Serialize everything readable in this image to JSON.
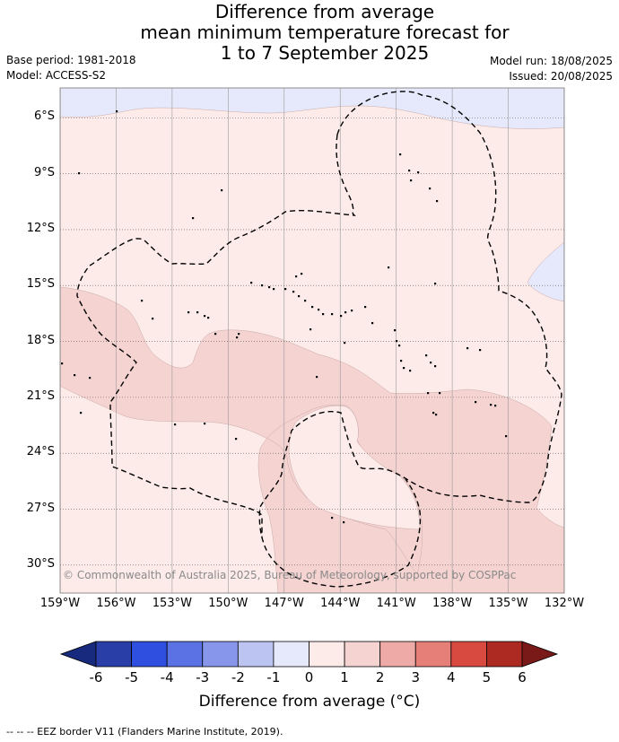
{
  "title": {
    "line1": "Difference from average",
    "line2": "mean minimum temperature forecast for",
    "line3": "1 to 7 September 2025"
  },
  "meta": {
    "base_period": "Base period: 1981-2018",
    "model": "Model: ACCESS-S2",
    "model_run": "Model run: 18/08/2025",
    "issued": "Issued: 20/08/2025"
  },
  "map": {
    "lon_labels": [
      "159°W",
      "156°W",
      "153°W",
      "150°W",
      "147°W",
      "144°W",
      "141°W",
      "138°W",
      "135°W",
      "132°W"
    ],
    "lat_labels": [
      "6°S",
      "9°S",
      "12°S",
      "15°S",
      "18°S",
      "21°S",
      "24°S",
      "27°S",
      "30°S"
    ],
    "lon_range": [
      -159,
      -132
    ],
    "lat_range": [
      -31.5,
      -4.4
    ],
    "copyright": "© Commonwealth of Australia 2025, Bureau of Meteorology, supported by COSPPac"
  },
  "colorbar": {
    "ticks": [
      "-6",
      "-5",
      "-4",
      "-3",
      "-2",
      "-1",
      "0",
      "1",
      "2",
      "3",
      "4",
      "5",
      "6"
    ],
    "colors": [
      "#2a3ea8",
      "#2f4fe0",
      "#5a72e4",
      "#8796ea",
      "#bcc4f2",
      "#e6e9fb",
      "#fcebe9",
      "#f4d3d1",
      "#eeaaa6",
      "#e57f77",
      "#d84a40",
      "#ac2a22"
    ],
    "under_color": "#172a7e",
    "over_color": "#7a1a18",
    "title": "Difference from average (°C)"
  },
  "map_colors": {
    "cool_zone": "#e6e9fb",
    "mild_warm": "#fcebe9",
    "warm": "#f4d3d1"
  },
  "footnote": "-- -- -- EEZ border V11 (Flanders Marine Institute, 2019)."
}
